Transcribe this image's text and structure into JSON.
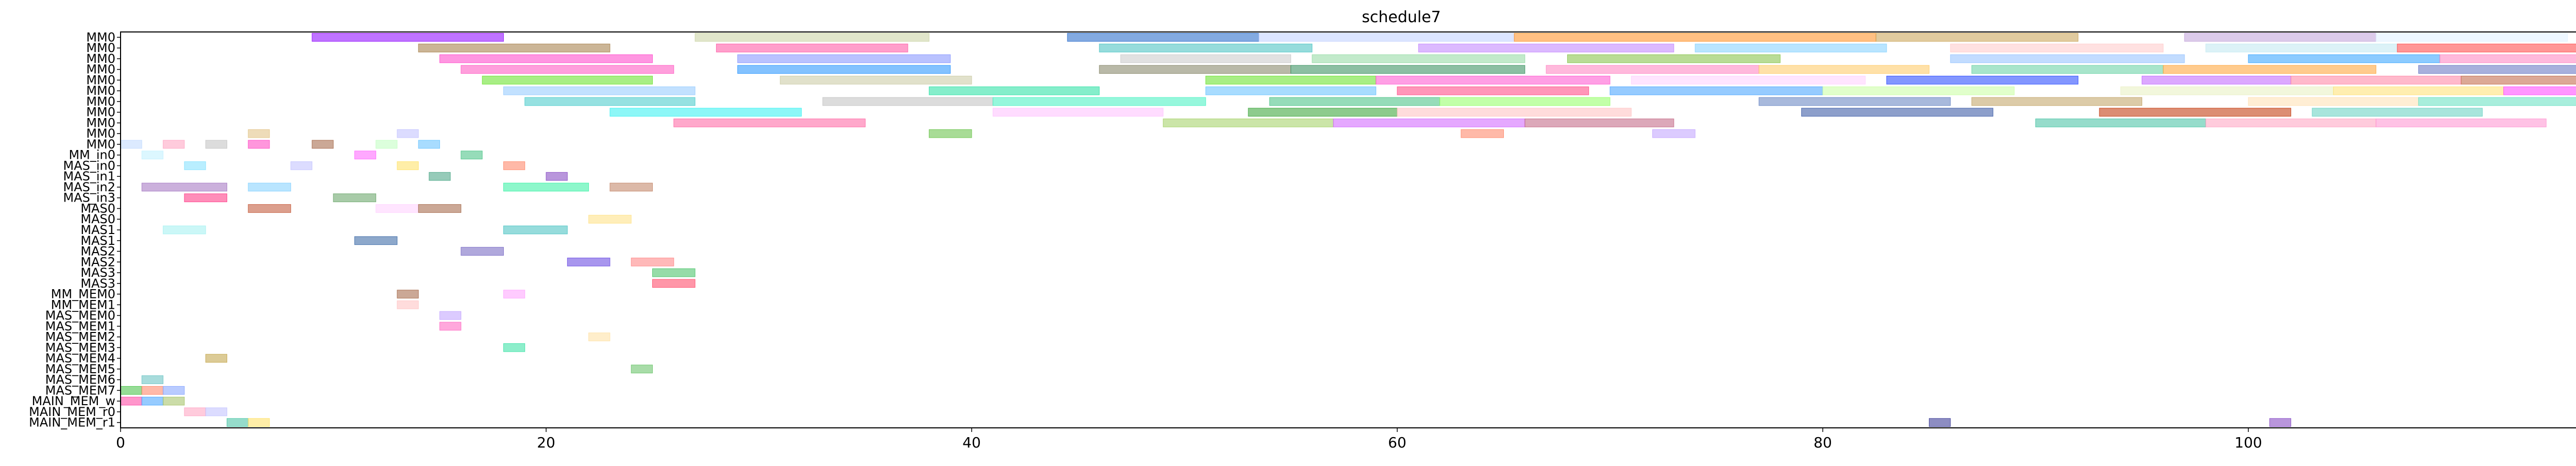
{
  "chart_data": {
    "type": "gantt",
    "title": "schedule7",
    "xlabel": "",
    "ylabel": "",
    "xlim": [
      0,
      120
    ],
    "xticks": [
      0,
      20,
      40,
      60,
      80,
      100,
      120
    ],
    "grid": false,
    "legend": "none",
    "rows": [
      "MM0",
      "MM0",
      "MM0",
      "MM0",
      "MM0",
      "MM0",
      "MM0",
      "MM0",
      "MM0",
      "MM0",
      "MM0",
      "MM_in0",
      "MAS_in0",
      "MAS_in1",
      "MAS_in2",
      "MAS_in3",
      "MAS0",
      "MAS0",
      "MAS1",
      "MAS1",
      "MAS2",
      "MAS2",
      "MAS3",
      "MAS3",
      "MM_MEM0",
      "MM_MEM1",
      "MAS_MEM0",
      "MAS_MEM1",
      "MAS_MEM2",
      "MAS_MEM3",
      "MAS_MEM4",
      "MAS_MEM5",
      "MAS_MEM6",
      "MAS_MEM7",
      "MAIN_MEM_w",
      "MAIN_MEM_r0",
      "MAIN_MEM_r1"
    ],
    "tasks": [
      {
        "row": 0,
        "start": 9.0,
        "end": 18.0,
        "color": "#8b00ff"
      },
      {
        "row": 0,
        "start": 27.0,
        "end": 38.0,
        "color": "#c8d2a0"
      },
      {
        "row": 0,
        "start": 44.5,
        "end": 53.5,
        "color": "#1e64c8"
      },
      {
        "row": 0,
        "start": 53.5,
        "end": 65.5,
        "color": "#c0d0ff"
      },
      {
        "row": 0,
        "start": 65.5,
        "end": 82.5,
        "color": "#ff8c1e"
      },
      {
        "row": 0,
        "start": 82.5,
        "end": 92.0,
        "color": "#c8a050"
      },
      {
        "row": 0,
        "start": 97.0,
        "end": 106.0,
        "color": "#c0a0d8"
      },
      {
        "row": 0,
        "start": 106.0,
        "end": 115.0,
        "color": "#e0f0ff"
      },
      {
        "row": 1,
        "start": 14.0,
        "end": 23.0,
        "color": "#a07840"
      },
      {
        "row": 1,
        "start": 28.0,
        "end": 37.0,
        "color": "#ff50a0"
      },
      {
        "row": 1,
        "start": 46.0,
        "end": 56.0,
        "color": "#40c0c0"
      },
      {
        "row": 1,
        "start": 61.0,
        "end": 73.0,
        "color": "#c080ff"
      },
      {
        "row": 1,
        "start": 74.0,
        "end": 83.0,
        "color": "#80d0ff"
      },
      {
        "row": 1,
        "start": 86.0,
        "end": 96.0,
        "color": "#ffc8c8"
      },
      {
        "row": 1,
        "start": 98.0,
        "end": 107.0,
        "color": "#c0e8f0"
      },
      {
        "row": 1,
        "start": 107.0,
        "end": 116.0,
        "color": "#ff4040"
      },
      {
        "row": 2,
        "start": 15.0,
        "end": 25.0,
        "color": "#ff40c8"
      },
      {
        "row": 2,
        "start": 29.0,
        "end": 39.0,
        "color": "#8090ff"
      },
      {
        "row": 2,
        "start": 47.0,
        "end": 55.0,
        "color": "#c8c8c8"
      },
      {
        "row": 2,
        "start": 56.0,
        "end": 66.0,
        "color": "#90d8a0"
      },
      {
        "row": 2,
        "start": 68.0,
        "end": 78.0,
        "color": "#80c040"
      },
      {
        "row": 2,
        "start": 86.0,
        "end": 97.0,
        "color": "#90c0ff"
      },
      {
        "row": 2,
        "start": 100.0,
        "end": 109.0,
        "color": "#2ea0ff"
      },
      {
        "row": 2,
        "start": 109.0,
        "end": 119.0,
        "color": "#ff80c0"
      },
      {
        "row": 3,
        "start": 16.0,
        "end": 26.0,
        "color": "#ff50c0"
      },
      {
        "row": 3,
        "start": 29.0,
        "end": 39.0,
        "color": "#1e90ff"
      },
      {
        "row": 3,
        "start": 46.0,
        "end": 55.0,
        "color": "#808060"
      },
      {
        "row": 3,
        "start": 55.0,
        "end": 66.0,
        "color": "#2e8b57"
      },
      {
        "row": 3,
        "start": 67.0,
        "end": 77.0,
        "color": "#ff80c0"
      },
      {
        "row": 3,
        "start": 77.0,
        "end": 85.0,
        "color": "#ffc860"
      },
      {
        "row": 3,
        "start": 87.0,
        "end": 96.0,
        "color": "#60d0a0"
      },
      {
        "row": 3,
        "start": 96.0,
        "end": 106.0,
        "color": "#ffa030"
      },
      {
        "row": 3,
        "start": 108.0,
        "end": 117.0,
        "color": "#6070c0"
      },
      {
        "row": 4,
        "start": 17.0,
        "end": 25.0,
        "color": "#60e020"
      },
      {
        "row": 4,
        "start": 31.0,
        "end": 40.0,
        "color": "#c8c8a0"
      },
      {
        "row": 4,
        "start": 51.0,
        "end": 59.0,
        "color": "#60e020"
      },
      {
        "row": 4,
        "start": 59.0,
        "end": 70.0,
        "color": "#ff50d0"
      },
      {
        "row": 4,
        "start": 71.0,
        "end": 82.0,
        "color": "#ffd0ff"
      },
      {
        "row": 4,
        "start": 83.0,
        "end": 92.0,
        "color": "#1e40ff"
      },
      {
        "row": 4,
        "start": 95.0,
        "end": 102.0,
        "color": "#c060ff"
      },
      {
        "row": 4,
        "start": 102.0,
        "end": 110.0,
        "color": "#ff80a0"
      },
      {
        "row": 4,
        "start": 110.0,
        "end": 119.0,
        "color": "#c06040"
      },
      {
        "row": 5,
        "start": 18.0,
        "end": 27.0,
        "color": "#90c8ff"
      },
      {
        "row": 5,
        "start": 38.0,
        "end": 46.0,
        "color": "#20e0a0"
      },
      {
        "row": 5,
        "start": 51.0,
        "end": 59.0,
        "color": "#60c0ff"
      },
      {
        "row": 5,
        "start": 60.0,
        "end": 69.0,
        "color": "#ff4080"
      },
      {
        "row": 5,
        "start": 70.0,
        "end": 80.0,
        "color": "#40a0ff"
      },
      {
        "row": 5,
        "start": 80.0,
        "end": 89.0,
        "color": "#c8ffa0"
      },
      {
        "row": 5,
        "start": 94.0,
        "end": 104.0,
        "color": "#e8f0c0"
      },
      {
        "row": 5,
        "start": 104.0,
        "end": 112.0,
        "color": "#ffe070"
      },
      {
        "row": 5,
        "start": 112.0,
        "end": 120.0,
        "color": "#ff40ff"
      },
      {
        "row": 6,
        "start": 19.0,
        "end": 27.0,
        "color": "#40c8c8"
      },
      {
        "row": 6,
        "start": 33.0,
        "end": 41.0,
        "color": "#c0c0c0"
      },
      {
        "row": 6,
        "start": 41.0,
        "end": 51.0,
        "color": "#40f0c0"
      },
      {
        "row": 6,
        "start": 54.0,
        "end": 62.0,
        "color": "#40c080"
      },
      {
        "row": 6,
        "start": 62.0,
        "end": 70.0,
        "color": "#90ff60"
      },
      {
        "row": 6,
        "start": 77.0,
        "end": 86.0,
        "color": "#6080c0"
      },
      {
        "row": 6,
        "start": 87.0,
        "end": 95.0,
        "color": "#c0a060"
      },
      {
        "row": 6,
        "start": 100.0,
        "end": 108.0,
        "color": "#ffe0b0"
      },
      {
        "row": 6,
        "start": 108.0,
        "end": 116.0,
        "color": "#60e0c0"
      },
      {
        "row": 7,
        "start": 23.0,
        "end": 32.0,
        "color": "#30f0f0"
      },
      {
        "row": 7,
        "start": 41.0,
        "end": 49.0,
        "color": "#ffc0ff"
      },
      {
        "row": 7,
        "start": 53.0,
        "end": 60.0,
        "color": "#30a030"
      },
      {
        "row": 7,
        "start": 60.0,
        "end": 71.0,
        "color": "#ffc0c0"
      },
      {
        "row": 7,
        "start": 79.0,
        "end": 88.0,
        "color": "#3050a0"
      },
      {
        "row": 7,
        "start": 93.0,
        "end": 102.0,
        "color": "#c03000"
      },
      {
        "row": 7,
        "start": 103.0,
        "end": 111.0,
        "color": "#60d0c0"
      },
      {
        "row": 8,
        "start": 26.0,
        "end": 35.0,
        "color": "#ff60a0"
      },
      {
        "row": 8,
        "start": 49.0,
        "end": 57.0,
        "color": "#a0d060"
      },
      {
        "row": 8,
        "start": 57.0,
        "end": 66.0,
        "color": "#d060ff"
      },
      {
        "row": 8,
        "start": 66.0,
        "end": 73.0,
        "color": "#c06080"
      },
      {
        "row": 8,
        "start": 90.0,
        "end": 98.0,
        "color": "#40c0a0"
      },
      {
        "row": 8,
        "start": 98.0,
        "end": 106.0,
        "color": "#ffa0c0"
      },
      {
        "row": 8,
        "start": 106.0,
        "end": 114.0,
        "color": "#ff90d0"
      },
      {
        "row": 9,
        "start": 6.0,
        "end": 7.0,
        "color": "#e0c080"
      },
      {
        "row": 9,
        "start": 13.0,
        "end": 14.0,
        "color": "#c0c0ff"
      },
      {
        "row": 9,
        "start": 38.0,
        "end": 40.0,
        "color": "#60c040"
      },
      {
        "row": 9,
        "start": 63.0,
        "end": 65.0,
        "color": "#ff8060"
      },
      {
        "row": 9,
        "start": 72.0,
        "end": 74.0,
        "color": "#c0a0ff"
      },
      {
        "row": 10,
        "start": 0.0,
        "end": 1.0,
        "color": "#c0d8ff"
      },
      {
        "row": 10,
        "start": 2.0,
        "end": 3.0,
        "color": "#ffa0c0"
      },
      {
        "row": 10,
        "start": 4.0,
        "end": 5.0,
        "color": "#c0c0c0"
      },
      {
        "row": 10,
        "start": 6.0,
        "end": 7.0,
        "color": "#ff40c0"
      },
      {
        "row": 10,
        "start": 9.0,
        "end": 10.0,
        "color": "#a06040"
      },
      {
        "row": 10,
        "start": 12.0,
        "end": 13.0,
        "color": "#c0ffc0"
      },
      {
        "row": 10,
        "start": 14.0,
        "end": 15.0,
        "color": "#60c0ff"
      },
      {
        "row": 11,
        "start": 1.0,
        "end": 2.0,
        "color": "#c0f0ff"
      },
      {
        "row": 11,
        "start": 11.0,
        "end": 12.0,
        "color": "#ff60ff"
      },
      {
        "row": 11,
        "start": 16.0,
        "end": 17.0,
        "color": "#40c080"
      },
      {
        "row": 12,
        "start": 3.0,
        "end": 4.0,
        "color": "#80e0ff"
      },
      {
        "row": 12,
        "start": 8.0,
        "end": 9.0,
        "color": "#c0c0ff"
      },
      {
        "row": 12,
        "start": 13.0,
        "end": 14.0,
        "color": "#ffe060"
      },
      {
        "row": 12,
        "start": 18.0,
        "end": 19.0,
        "color": "#ff8060"
      },
      {
        "row": 13,
        "start": 14.5,
        "end": 15.5,
        "color": "#40a080"
      },
      {
        "row": 13,
        "start": 20.0,
        "end": 21.0,
        "color": "#8040c0"
      },
      {
        "row": 14,
        "start": 1.0,
        "end": 5.0,
        "color": "#a070c0"
      },
      {
        "row": 14,
        "start": 6.0,
        "end": 8.0,
        "color": "#80d0ff"
      },
      {
        "row": 14,
        "start": 18.0,
        "end": 22.0,
        "color": "#30f0a0"
      },
      {
        "row": 14,
        "start": 23.0,
        "end": 25.0,
        "color": "#c08060"
      },
      {
        "row": 15,
        "start": 3.0,
        "end": 5.0,
        "color": "#ff3080"
      },
      {
        "row": 15,
        "start": 10.0,
        "end": 12.0,
        "color": "#60a060"
      },
      {
        "row": 16,
        "start": 6.0,
        "end": 8.0,
        "color": "#c05030"
      },
      {
        "row": 16,
        "start": 12.0,
        "end": 14.0,
        "color": "#ffd0ff"
      },
      {
        "row": 16,
        "start": 14.0,
        "end": 16.0,
        "color": "#a06040"
      },
      {
        "row": 17,
        "start": 22.0,
        "end": 24.0,
        "color": "#ffe080"
      },
      {
        "row": 18,
        "start": 2.0,
        "end": 4.0,
        "color": "#a0f0f0"
      },
      {
        "row": 18,
        "start": 18.0,
        "end": 21.0,
        "color": "#40c0c0"
      },
      {
        "row": 19,
        "start": 11.0,
        "end": 13.0,
        "color": "#3060a0"
      },
      {
        "row": 20,
        "start": 16.0,
        "end": 18.0,
        "color": "#7060c0"
      },
      {
        "row": 21,
        "start": 21.0,
        "end": 23.0,
        "color": "#6040e0"
      },
      {
        "row": 21,
        "start": 24.0,
        "end": 26.0,
        "color": "#ff8080"
      },
      {
        "row": 22,
        "start": 25.0,
        "end": 27.0,
        "color": "#40c060"
      },
      {
        "row": 23,
        "start": 25.0,
        "end": 27.0,
        "color": "#ff4060"
      },
      {
        "row": 24,
        "start": 13.0,
        "end": 14.0,
        "color": "#a06040"
      },
      {
        "row": 24,
        "start": 18.0,
        "end": 19.0,
        "color": "#ffa0ff"
      },
      {
        "row": 25,
        "start": 13.0,
        "end": 14.0,
        "color": "#ffc0c0"
      },
      {
        "row": 26,
        "start": 15.0,
        "end": 16.0,
        "color": "#c0a0ff"
      },
      {
        "row": 27,
        "start": 15.0,
        "end": 16.0,
        "color": "#ff60c0"
      },
      {
        "row": 28,
        "start": 22.0,
        "end": 23.0,
        "color": "#ffe0a0"
      },
      {
        "row": 29,
        "start": 18.0,
        "end": 19.0,
        "color": "#30e0a0"
      },
      {
        "row": 30,
        "start": 4.0,
        "end": 5.0,
        "color": "#c0a040"
      },
      {
        "row": 31,
        "start": 24.0,
        "end": 25.0,
        "color": "#60c060"
      },
      {
        "row": 32,
        "start": 1.0,
        "end": 2.0,
        "color": "#60c0c0"
      },
      {
        "row": 33,
        "start": 0.0,
        "end": 1.0,
        "color": "#40c040"
      },
      {
        "row": 33,
        "start": 1.0,
        "end": 2.0,
        "color": "#ff8060"
      },
      {
        "row": 33,
        "start": 2.0,
        "end": 3.0,
        "color": "#80a0ff"
      },
      {
        "row": 34,
        "start": 0.0,
        "end": 1.0,
        "color": "#ff40a0"
      },
      {
        "row": 34,
        "start": 1.0,
        "end": 2.0,
        "color": "#40a0ff"
      },
      {
        "row": 34,
        "start": 2.0,
        "end": 3.0,
        "color": "#a0c060"
      },
      {
        "row": 35,
        "start": 3.0,
        "end": 4.0,
        "color": "#ffa0c0"
      },
      {
        "row": 35,
        "start": 4.0,
        "end": 5.0,
        "color": "#c0c0ff"
      },
      {
        "row": 36,
        "start": 5.0,
        "end": 6.0,
        "color": "#40c0a0"
      },
      {
        "row": 36,
        "start": 6.0,
        "end": 7.0,
        "color": "#ffe060"
      },
      {
        "row": 36,
        "start": 85.0,
        "end": 86.0,
        "color": "#303090"
      },
      {
        "row": 36,
        "start": 101.0,
        "end": 102.0,
        "color": "#8040c0"
      }
    ]
  }
}
